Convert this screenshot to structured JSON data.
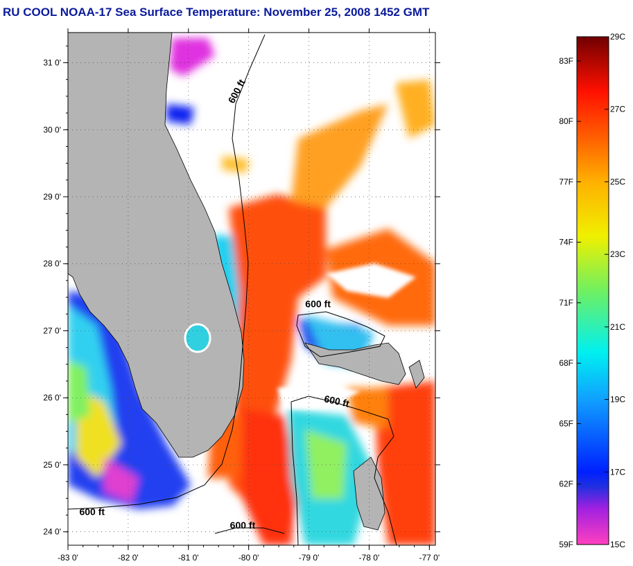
{
  "title": "RU COOL  NOAA-17  Sea Surface Temperature:  November 25, 2008 1452 GMT",
  "map": {
    "lon_range": [
      -83,
      -76.9
    ],
    "lat_range": [
      23.8,
      31.45
    ],
    "lon_ticks": [
      {
        "value": -83,
        "label": "-83 0'"
      },
      {
        "value": -82,
        "label": "-82 0'"
      },
      {
        "value": -81,
        "label": "-81 0'"
      },
      {
        "value": -80,
        "label": "-80 0'"
      },
      {
        "value": -79,
        "label": "-79 0'"
      },
      {
        "value": -78,
        "label": "-78 0'"
      },
      {
        "value": -77,
        "label": "-77 0'"
      }
    ],
    "lat_ticks": [
      {
        "value": 24,
        "label": "24 0'"
      },
      {
        "value": 25,
        "label": "25 0'"
      },
      {
        "value": 26,
        "label": "26 0'"
      },
      {
        "value": 27,
        "label": "27 0'"
      },
      {
        "value": 28,
        "label": "28 0'"
      },
      {
        "value": 29,
        "label": "29 0'"
      },
      {
        "value": 30,
        "label": "30 0'"
      },
      {
        "value": 31,
        "label": "31 0'"
      }
    ],
    "contour_labels": [
      {
        "text": "600 ft",
        "lon": -80.15,
        "lat": 30.55,
        "rotate": -62
      },
      {
        "text": "600 ft",
        "lon": -78.85,
        "lat": 27.35,
        "rotate": 0
      },
      {
        "text": "600 ft",
        "lon": -78.55,
        "lat": 25.9,
        "rotate": 12
      },
      {
        "text": "600 ft",
        "lon": -82.6,
        "lat": 24.25,
        "rotate": 0
      },
      {
        "text": "600 ft",
        "lon": -80.1,
        "lat": 24.05,
        "rotate": 0
      }
    ],
    "land_color": "#b4b4b4",
    "ocean_cloud_color": "#ffffff"
  },
  "colorbar": {
    "min_c": 15,
    "max_c": 29,
    "celsius_labels": [
      {
        "value": 29,
        "label": "29C"
      },
      {
        "value": 27,
        "label": "27C"
      },
      {
        "value": 25,
        "label": "25C"
      },
      {
        "value": 23,
        "label": "23C"
      },
      {
        "value": 21,
        "label": "21C"
      },
      {
        "value": 19,
        "label": "19C"
      },
      {
        "value": 17,
        "label": "17C"
      },
      {
        "value": 15,
        "label": "15C"
      }
    ],
    "fahrenheit_labels": [
      {
        "value": 83,
        "label": "83F"
      },
      {
        "value": 80,
        "label": "80F"
      },
      {
        "value": 77,
        "label": "77F"
      },
      {
        "value": 74,
        "label": "74F"
      },
      {
        "value": 71,
        "label": "71F"
      },
      {
        "value": 68,
        "label": "68F"
      },
      {
        "value": 65,
        "label": "65F"
      },
      {
        "value": 62,
        "label": "62F"
      },
      {
        "value": 59,
        "label": "59F"
      }
    ],
    "stops": [
      {
        "c": 15,
        "color": "#ff40c0"
      },
      {
        "c": 16,
        "color": "#a020e0"
      },
      {
        "c": 16.6,
        "color": "#2030e0"
      },
      {
        "c": 17,
        "color": "#0020ff"
      },
      {
        "c": 19,
        "color": "#10a0ff"
      },
      {
        "c": 20.3,
        "color": "#00f0f0"
      },
      {
        "c": 22,
        "color": "#70f060"
      },
      {
        "c": 23.5,
        "color": "#f0f000"
      },
      {
        "c": 25,
        "color": "#ffb000"
      },
      {
        "c": 26.2,
        "color": "#ff6000"
      },
      {
        "c": 27.5,
        "color": "#ff1000"
      },
      {
        "c": 29,
        "color": "#700000"
      }
    ]
  }
}
